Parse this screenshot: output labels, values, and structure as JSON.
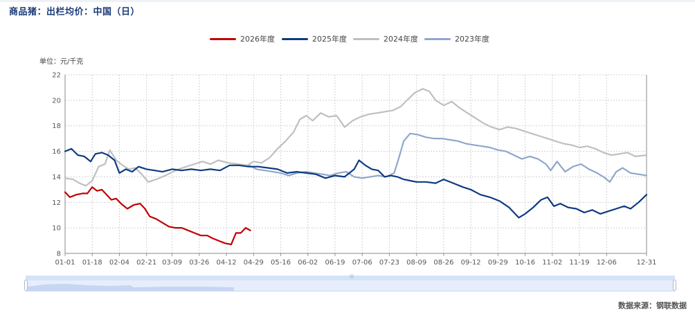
{
  "title": "商品猪：出栏均价：中国（日）",
  "unit_label": "单位：元/千克",
  "source": "数据来源：钢联数据",
  "chart_data": {
    "type": "line",
    "title": "商品猪：出栏均价：中国（日）",
    "xlabel": "",
    "ylabel": "单位：元/千克",
    "ylim": [
      8,
      22
    ],
    "yticks": [
      8,
      10,
      12,
      14,
      16,
      18,
      20,
      22
    ],
    "xlim": [
      "01-01",
      "12-31"
    ],
    "xticks": [
      "01-01",
      "01-18",
      "02-04",
      "02-21",
      "03-09",
      "03-26",
      "04-12",
      "04-29",
      "05-16",
      "06-02",
      "06-19",
      "07-06",
      "07-23",
      "08-09",
      "08-26",
      "09-12",
      "09-29",
      "10-16",
      "11-02",
      "11-19",
      "12-06",
      "12-31"
    ],
    "grid": true,
    "legend_position": "top-center",
    "series": [
      {
        "name": "2026年度",
        "color": "#c00000",
        "points": [
          [
            "01-01",
            12.8
          ],
          [
            "01-04",
            12.4
          ],
          [
            "01-08",
            12.6
          ],
          [
            "01-12",
            12.7
          ],
          [
            "01-15",
            12.7
          ],
          [
            "01-18",
            13.2
          ],
          [
            "01-21",
            12.9
          ],
          [
            "01-24",
            13.0
          ],
          [
            "01-27",
            12.6
          ],
          [
            "01-30",
            12.2
          ],
          [
            "02-02",
            12.3
          ],
          [
            "02-05",
            11.9
          ],
          [
            "02-09",
            11.5
          ],
          [
            "02-13",
            11.8
          ],
          [
            "02-17",
            11.9
          ],
          [
            "02-20",
            11.5
          ],
          [
            "02-23",
            10.9
          ],
          [
            "02-27",
            10.7
          ],
          [
            "03-03",
            10.4
          ],
          [
            "03-07",
            10.1
          ],
          [
            "03-11",
            10.0
          ],
          [
            "03-15",
            10.0
          ],
          [
            "03-19",
            9.8
          ],
          [
            "03-23",
            9.6
          ],
          [
            "03-27",
            9.4
          ],
          [
            "03-31",
            9.4
          ],
          [
            "04-03",
            9.2
          ],
          [
            "04-07",
            9.0
          ],
          [
            "04-11",
            8.8
          ],
          [
            "04-15",
            8.7
          ],
          [
            "04-18",
            9.6
          ],
          [
            "04-21",
            9.6
          ],
          [
            "04-24",
            10.0
          ],
          [
            "04-27",
            9.8
          ]
        ]
      },
      {
        "name": "2025年度",
        "color": "#0d3a82",
        "points": [
          [
            "01-01",
            16.0
          ],
          [
            "01-05",
            16.2
          ],
          [
            "01-09",
            15.7
          ],
          [
            "01-13",
            15.6
          ],
          [
            "01-17",
            15.2
          ],
          [
            "01-20",
            15.8
          ],
          [
            "01-24",
            15.9
          ],
          [
            "01-28",
            15.7
          ],
          [
            "02-01",
            15.3
          ],
          [
            "02-04",
            14.3
          ],
          [
            "02-08",
            14.6
          ],
          [
            "02-12",
            14.4
          ],
          [
            "02-16",
            14.8
          ],
          [
            "02-21",
            14.6
          ],
          [
            "02-26",
            14.5
          ],
          [
            "03-03",
            14.4
          ],
          [
            "03-09",
            14.6
          ],
          [
            "03-15",
            14.5
          ],
          [
            "03-21",
            14.6
          ],
          [
            "03-27",
            14.5
          ],
          [
            "04-02",
            14.6
          ],
          [
            "04-08",
            14.5
          ],
          [
            "04-14",
            14.9
          ],
          [
            "04-20",
            14.9
          ],
          [
            "04-26",
            14.8
          ],
          [
            "05-02",
            14.8
          ],
          [
            "05-08",
            14.7
          ],
          [
            "05-14",
            14.6
          ],
          [
            "05-20",
            14.3
          ],
          [
            "05-26",
            14.4
          ],
          [
            "06-01",
            14.3
          ],
          [
            "06-07",
            14.2
          ],
          [
            "06-13",
            13.9
          ],
          [
            "06-19",
            14.1
          ],
          [
            "06-25",
            14.0
          ],
          [
            "07-01",
            14.6
          ],
          [
            "07-04",
            15.3
          ],
          [
            "07-08",
            14.9
          ],
          [
            "07-12",
            14.6
          ],
          [
            "07-16",
            14.5
          ],
          [
            "07-20",
            14.0
          ],
          [
            "07-24",
            14.1
          ],
          [
            "07-28",
            14.0
          ],
          [
            "08-01",
            13.8
          ],
          [
            "08-05",
            13.7
          ],
          [
            "08-09",
            13.6
          ],
          [
            "08-15",
            13.6
          ],
          [
            "08-21",
            13.5
          ],
          [
            "08-26",
            13.8
          ],
          [
            "09-01",
            13.5
          ],
          [
            "09-07",
            13.2
          ],
          [
            "09-12",
            13.0
          ],
          [
            "09-18",
            12.6
          ],
          [
            "09-24",
            12.4
          ],
          [
            "09-30",
            12.1
          ],
          [
            "10-06",
            11.6
          ],
          [
            "10-12",
            10.8
          ],
          [
            "10-16",
            11.1
          ],
          [
            "10-21",
            11.6
          ],
          [
            "10-26",
            12.2
          ],
          [
            "10-30",
            12.4
          ],
          [
            "11-03",
            11.7
          ],
          [
            "11-07",
            11.9
          ],
          [
            "11-12",
            11.6
          ],
          [
            "11-17",
            11.5
          ],
          [
            "11-22",
            11.2
          ],
          [
            "11-27",
            11.4
          ],
          [
            "12-02",
            11.1
          ],
          [
            "12-07",
            11.3
          ],
          [
            "12-12",
            11.5
          ],
          [
            "12-17",
            11.7
          ],
          [
            "12-21",
            11.5
          ],
          [
            "12-26",
            12.0
          ],
          [
            "12-31",
            12.6
          ]
        ]
      },
      {
        "name": "2024年度",
        "color": "#bfbfbf",
        "points": [
          [
            "01-01",
            13.9
          ],
          [
            "01-06",
            13.8
          ],
          [
            "01-10",
            13.5
          ],
          [
            "01-14",
            13.3
          ],
          [
            "01-18",
            13.7
          ],
          [
            "01-22",
            14.8
          ],
          [
            "01-26",
            15.0
          ],
          [
            "01-29",
            16.1
          ],
          [
            "02-02",
            15.3
          ],
          [
            "02-06",
            14.9
          ],
          [
            "02-10",
            14.6
          ],
          [
            "02-14",
            14.7
          ],
          [
            "02-18",
            14.2
          ],
          [
            "02-22",
            13.6
          ],
          [
            "02-27",
            13.8
          ],
          [
            "03-03",
            14.0
          ],
          [
            "03-08",
            14.3
          ],
          [
            "03-13",
            14.6
          ],
          [
            "03-18",
            14.8
          ],
          [
            "03-23",
            15.0
          ],
          [
            "03-28",
            15.2
          ],
          [
            "04-02",
            15.0
          ],
          [
            "04-07",
            15.3
          ],
          [
            "04-13",
            15.1
          ],
          [
            "04-19",
            15.0
          ],
          [
            "04-25",
            14.9
          ],
          [
            "04-29",
            15.2
          ],
          [
            "05-04",
            15.1
          ],
          [
            "05-09",
            15.5
          ],
          [
            "05-14",
            16.2
          ],
          [
            "05-19",
            16.8
          ],
          [
            "05-24",
            17.5
          ],
          [
            "05-28",
            18.5
          ],
          [
            "06-01",
            18.8
          ],
          [
            "06-05",
            18.4
          ],
          [
            "06-10",
            19.0
          ],
          [
            "06-15",
            18.7
          ],
          [
            "06-20",
            18.8
          ],
          [
            "06-25",
            17.9
          ],
          [
            "06-30",
            18.4
          ],
          [
            "07-05",
            18.7
          ],
          [
            "07-10",
            18.9
          ],
          [
            "07-15",
            19.0
          ],
          [
            "07-20",
            19.1
          ],
          [
            "07-25",
            19.2
          ],
          [
            "07-30",
            19.5
          ],
          [
            "08-03",
            20.0
          ],
          [
            "08-08",
            20.6
          ],
          [
            "08-13",
            20.9
          ],
          [
            "08-17",
            20.7
          ],
          [
            "08-21",
            20.0
          ],
          [
            "08-26",
            19.6
          ],
          [
            "08-31",
            19.9
          ],
          [
            "09-05",
            19.4
          ],
          [
            "09-10",
            19.0
          ],
          [
            "09-15",
            18.6
          ],
          [
            "09-20",
            18.2
          ],
          [
            "09-25",
            17.9
          ],
          [
            "09-30",
            17.7
          ],
          [
            "10-05",
            17.9
          ],
          [
            "10-10",
            17.8
          ],
          [
            "10-15",
            17.6
          ],
          [
            "10-20",
            17.4
          ],
          [
            "10-25",
            17.2
          ],
          [
            "10-30",
            17.0
          ],
          [
            "11-04",
            16.8
          ],
          [
            "11-09",
            16.6
          ],
          [
            "11-14",
            16.5
          ],
          [
            "11-19",
            16.3
          ],
          [
            "11-24",
            16.4
          ],
          [
            "11-29",
            16.2
          ],
          [
            "12-04",
            15.9
          ],
          [
            "12-09",
            15.7
          ],
          [
            "12-14",
            15.8
          ],
          [
            "12-19",
            15.9
          ],
          [
            "12-24",
            15.6
          ],
          [
            "12-31",
            15.7
          ]
        ]
      },
      {
        "name": "2023年度",
        "color": "#8fa6cc",
        "points": [
          [
            "04-26",
            14.9
          ],
          [
            "05-01",
            14.6
          ],
          [
            "05-06",
            14.5
          ],
          [
            "05-11",
            14.4
          ],
          [
            "05-16",
            14.3
          ],
          [
            "05-21",
            14.1
          ],
          [
            "05-26",
            14.3
          ],
          [
            "06-01",
            14.4
          ],
          [
            "06-06",
            14.3
          ],
          [
            "06-11",
            14.2
          ],
          [
            "06-16",
            14.1
          ],
          [
            "06-21",
            14.3
          ],
          [
            "06-26",
            14.4
          ],
          [
            "07-01",
            14.0
          ],
          [
            "07-06",
            13.9
          ],
          [
            "07-11",
            14.0
          ],
          [
            "07-16",
            14.1
          ],
          [
            "07-21",
            14.0
          ],
          [
            "07-26",
            14.3
          ],
          [
            "07-29",
            15.5
          ],
          [
            "08-01",
            16.8
          ],
          [
            "08-05",
            17.4
          ],
          [
            "08-10",
            17.3
          ],
          [
            "08-15",
            17.1
          ],
          [
            "08-20",
            17.0
          ],
          [
            "08-25",
            17.0
          ],
          [
            "08-30",
            16.9
          ],
          [
            "09-04",
            16.8
          ],
          [
            "09-09",
            16.6
          ],
          [
            "09-14",
            16.5
          ],
          [
            "09-19",
            16.4
          ],
          [
            "09-24",
            16.3
          ],
          [
            "09-29",
            16.1
          ],
          [
            "10-04",
            16.0
          ],
          [
            "10-09",
            15.7
          ],
          [
            "10-14",
            15.4
          ],
          [
            "10-19",
            15.6
          ],
          [
            "10-24",
            15.4
          ],
          [
            "10-29",
            15.0
          ],
          [
            "11-01",
            14.5
          ],
          [
            "11-05",
            15.2
          ],
          [
            "11-10",
            14.4
          ],
          [
            "11-15",
            14.8
          ],
          [
            "11-20",
            15.0
          ],
          [
            "11-25",
            14.6
          ],
          [
            "11-30",
            14.3
          ],
          [
            "12-04",
            14.0
          ],
          [
            "12-08",
            13.6
          ],
          [
            "12-12",
            14.4
          ],
          [
            "12-16",
            14.7
          ],
          [
            "12-21",
            14.3
          ],
          [
            "12-26",
            14.2
          ],
          [
            "12-31",
            14.1
          ]
        ]
      }
    ]
  }
}
